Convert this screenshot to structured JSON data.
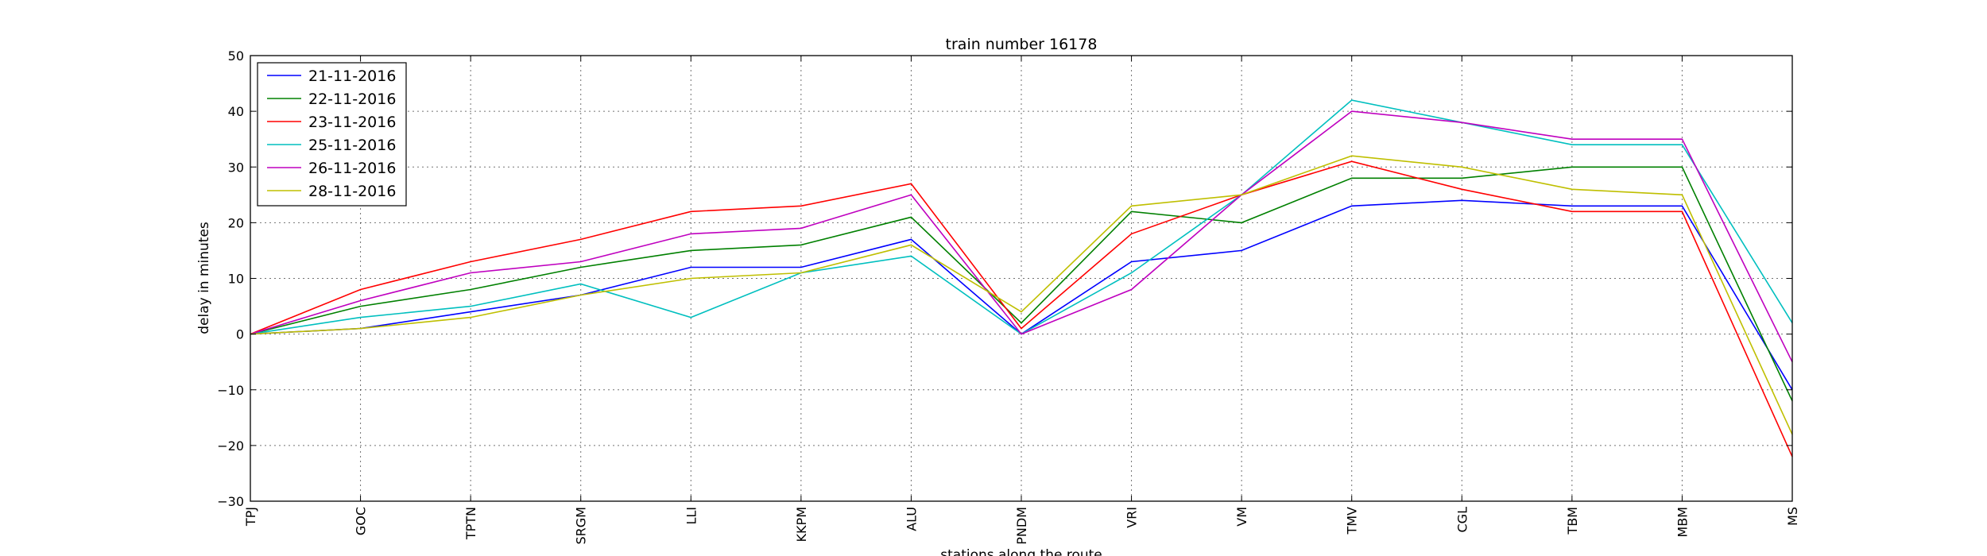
{
  "chart_data": {
    "type": "line",
    "title": "train number 16178",
    "xlabel": "stations along the route",
    "ylabel": "delay in minutes",
    "categories": [
      "TPJ",
      "GOC",
      "TPTN",
      "SRGM",
      "LLI",
      "KKPM",
      "ALU",
      "PNDM",
      "VRI",
      "VM",
      "TMV",
      "CGL",
      "TBM",
      "MBM",
      "MS"
    ],
    "ylim": [
      -30,
      50
    ],
    "yticks": [
      -30,
      -20,
      -10,
      0,
      10,
      20,
      30,
      40,
      50
    ],
    "ytick_labels": [
      "−30",
      "−20",
      "−10",
      "0",
      "10",
      "20",
      "30",
      "40",
      "50"
    ],
    "grid": true,
    "legend_position": "top-left",
    "series": [
      {
        "name": "21-11-2016",
        "color": "#0000ff",
        "values": [
          0,
          1,
          4,
          7,
          12,
          12,
          17,
          0,
          13,
          15,
          23,
          24,
          23,
          23,
          -10
        ]
      },
      {
        "name": "22-11-2016",
        "color": "#008000",
        "values": [
          0,
          5,
          8,
          12,
          15,
          16,
          21,
          2,
          22,
          20,
          28,
          28,
          30,
          30,
          -12
        ]
      },
      {
        "name": "23-11-2016",
        "color": "#ff0000",
        "values": [
          0,
          8,
          13,
          17,
          22,
          23,
          27,
          1,
          18,
          25,
          31,
          26,
          22,
          22,
          -22
        ]
      },
      {
        "name": "25-11-2016",
        "color": "#00bfbf",
        "values": [
          0,
          3,
          5,
          9,
          3,
          11,
          14,
          0,
          11,
          25,
          42,
          38,
          34,
          34,
          2
        ]
      },
      {
        "name": "26-11-2016",
        "color": "#bf00bf",
        "values": [
          0,
          6,
          11,
          13,
          18,
          19,
          25,
          0,
          8,
          25,
          40,
          38,
          35,
          35,
          -5
        ]
      },
      {
        "name": "28-11-2016",
        "color": "#bfbf00",
        "values": [
          0,
          1,
          3,
          7,
          10,
          11,
          16,
          4,
          23,
          25,
          32,
          30,
          26,
          25,
          -18
        ]
      }
    ]
  }
}
